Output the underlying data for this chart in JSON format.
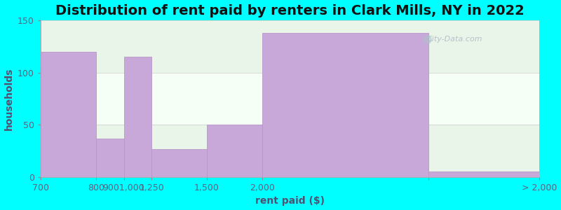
{
  "title": "Distribution of rent paid by renters in Clark Mills, NY in 2022",
  "xlabel": "rent paid ($)",
  "ylabel": "households",
  "bar_heights": [
    120,
    37,
    115,
    27,
    50,
    138,
    5
  ],
  "bar_left_edges": [
    0,
    2,
    3,
    4,
    6,
    8,
    14
  ],
  "bar_widths": [
    2,
    1,
    1,
    2,
    2,
    6,
    4
  ],
  "tick_positions": [
    0,
    2,
    3,
    4,
    6,
    8,
    14,
    18
  ],
  "tick_labels": [
    "700",
    "800",
    "9001,000",
    "1,250",
    "1,500",
    "2,000",
    "",
    "> 2,000"
  ],
  "bar_color": "#c8a8d8",
  "bar_edge_color": "#b898c8",
  "ylim": [
    0,
    150
  ],
  "yticks": [
    0,
    50,
    100,
    150
  ],
  "xlim": [
    0,
    18
  ],
  "background_color": "#00ffff",
  "band_boundaries": [
    0,
    50,
    100,
    150
  ],
  "band_colors": [
    "#e8f5e8",
    "#f5fff5"
  ],
  "title_fontsize": 14,
  "label_fontsize": 10,
  "tick_fontsize": 9,
  "watermark_text": "City-Data.com"
}
